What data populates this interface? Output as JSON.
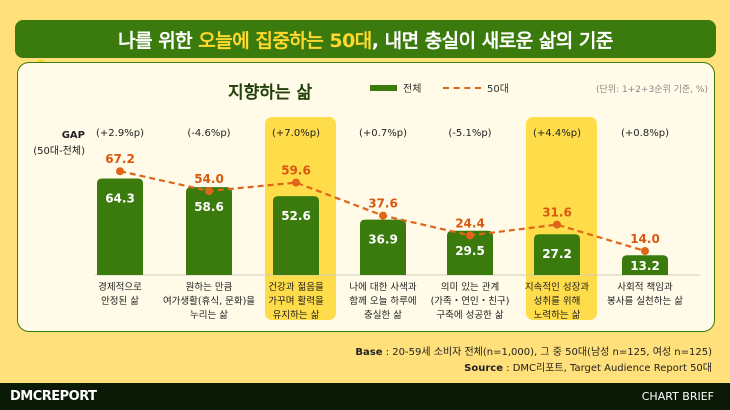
{
  "title": {
    "part1": "나를 위한 ",
    "highlight": "오늘에 집중하는 50대",
    "part2": ", 내면 충실이 새로운 삶의 기준"
  },
  "colors": {
    "bar": "#3b7a0c",
    "line": "#e0641a",
    "highlight": "#ffdc4a",
    "title_bg": "#3b7a0c"
  },
  "chart_data": {
    "type": "bar",
    "title": "지향하는 삶",
    "unit_note": "(단위: 1+2+3순위 기준, %)",
    "gap_label": [
      "GAP",
      "(50대-전체)"
    ],
    "categories": [
      "경제적으로\n안정된 삶",
      "원하는 만큼\n여가생활(휴식, 문화)을\n누리는 삶",
      "건강과 젊음을\n가꾸며 활력을\n유지하는 삶",
      "나에 대한 사색과\n함께 오늘 하루에\n충실한 삶",
      "의미 있는 관계\n(가족・연인・친구)\n구축에 성공한 삶",
      "지속적인 성장과\n성취를 위해\n노력하는 삶",
      "사회적 책임과\n봉사를 실천하는 삶"
    ],
    "series": [
      {
        "name": "전체",
        "type": "bar",
        "values": [
          64.3,
          58.6,
          52.6,
          36.9,
          29.5,
          27.2,
          13.2
        ],
        "labels": [
          "64.3",
          "58.6",
          "52.6",
          "36.9",
          "29.5",
          "27.2",
          "13.2"
        ]
      },
      {
        "name": "50대",
        "type": "line-dashed",
        "values": [
          67.2,
          54.0,
          59.6,
          37.6,
          24.4,
          31.6,
          14.0
        ],
        "labels": [
          "67.2",
          "54.0",
          "59.6",
          "37.6",
          "24.4",
          "31.6",
          "14.0"
        ]
      }
    ],
    "gaps": [
      "(+2.9%p)",
      "(-4.6%p)",
      "(+7.0%p)",
      "(+0.7%p)",
      "(-5.1%p)",
      "(+4.4%p)",
      "(+0.8%p)"
    ],
    "highlighted_categories": [
      2,
      5
    ],
    "legend_placement": "top",
    "grid": false
  },
  "notes": {
    "base_label": "Base",
    "base_text": " : 20-59세 소비자 전체(n=1,000), 그 중 50대(남성 n=125, 여성 n=125)",
    "source_label": "Source",
    "source_text": " : DMC리포트, Target Audience Report 50대"
  },
  "footer": {
    "logo": "DMCREPORT",
    "right": "CHART BRIEF"
  }
}
